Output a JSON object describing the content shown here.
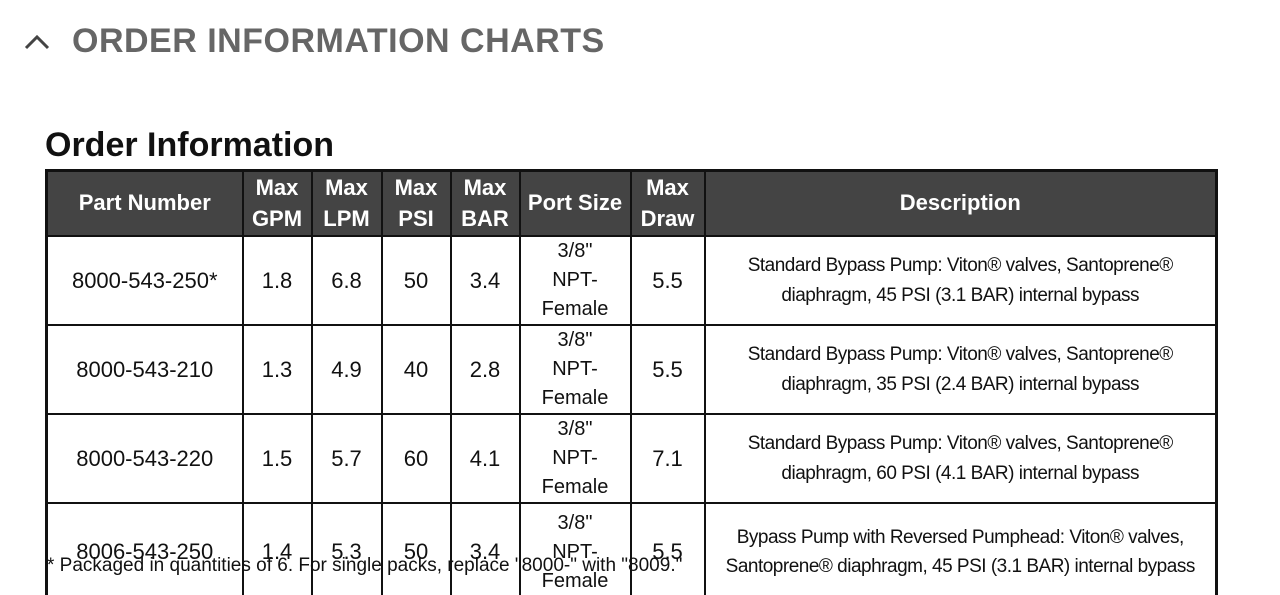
{
  "section": {
    "title": "ORDER INFORMATION CHARTS"
  },
  "table": {
    "title": "Order Information",
    "columns": [
      "Part Number",
      "Max GPM",
      "Max LPM",
      "Max PSI",
      "Max BAR",
      "Port Size",
      "Max Draw",
      "Description"
    ],
    "rows": [
      [
        "8000-543-250*",
        "1.8",
        "6.8",
        "50",
        "3.4",
        "3/8\" NPT-Female",
        "5.5",
        "Standard Bypass Pump: Viton® valves, Santoprene® diaphragm, 45 PSI (3.1 BAR) internal bypass"
      ],
      [
        "8000-543-210",
        "1.3",
        "4.9",
        "40",
        "2.8",
        "3/8\" NPT-Female",
        "5.5",
        "Standard Bypass Pump: Viton® valves, Santoprene® diaphragm, 35 PSI (2.4 BAR) internal bypass"
      ],
      [
        "8000-543-220",
        "1.5",
        "5.7",
        "60",
        "4.1",
        "3/8\" NPT-Female",
        "7.1",
        "Standard Bypass Pump: Viton® valves, Santoprene® diaphragm, 60 PSI (4.1 BAR) internal bypass"
      ],
      [
        "8006-543-250",
        "1.4",
        "5.3",
        "50",
        "3.4",
        "3/8\" NPT-Female",
        "5.5",
        "Bypass Pump with Reversed Pumphead: Viton® valves, Santoprene® diaphragm, 45 PSI (3.1 BAR) internal bypass"
      ]
    ],
    "footnote": "* Packaged in quantities of 6. For single packs, replace \"8000-\" with \"8009.\""
  }
}
